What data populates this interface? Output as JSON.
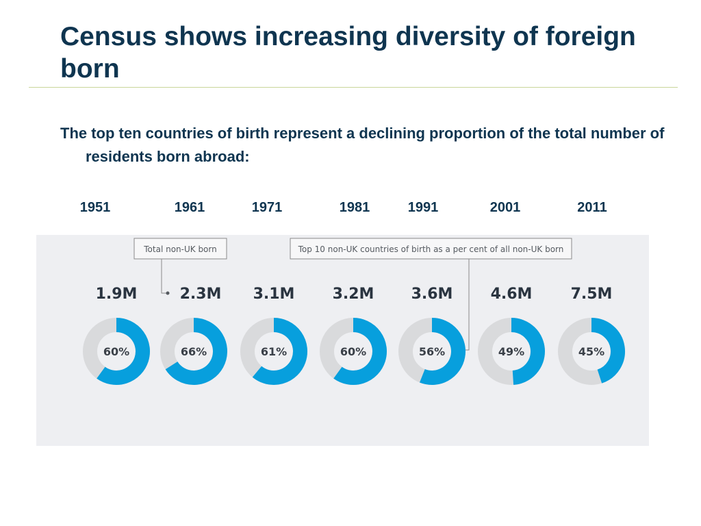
{
  "slide": {
    "title": "Census shows increasing diversity of foreign born",
    "intro": "The top ten countries of birth represent a declining proportion of the total number of residents born abroad:"
  },
  "annotations": {
    "total_label": "Total non-UK born",
    "top10_label": "Top 10 non-UK countries of birth as a per cent of all non-UK born"
  },
  "colors": {
    "share": "#079fdd",
    "remainder": "#d9dadc",
    "panel": "#eeeff2",
    "heading": "#0f3550"
  },
  "chart_data": {
    "type": "pie",
    "subtype": "donut",
    "categories": [
      "1951",
      "1961",
      "1971",
      "1981",
      "1991",
      "2001",
      "2011"
    ],
    "totals": [
      "1.9M",
      "2.3M",
      "3.1M",
      "3.2M",
      "3.6M",
      "4.6M",
      "7.5M"
    ],
    "series": [
      {
        "name": "Top 10 non-UK countries of birth as a per cent of all non-UK born",
        "values": [
          60,
          66,
          61,
          60,
          56,
          49,
          45
        ]
      }
    ],
    "value_labels": [
      "60%",
      "66%",
      "61%",
      "60%",
      "56%",
      "49%",
      "45%"
    ]
  }
}
